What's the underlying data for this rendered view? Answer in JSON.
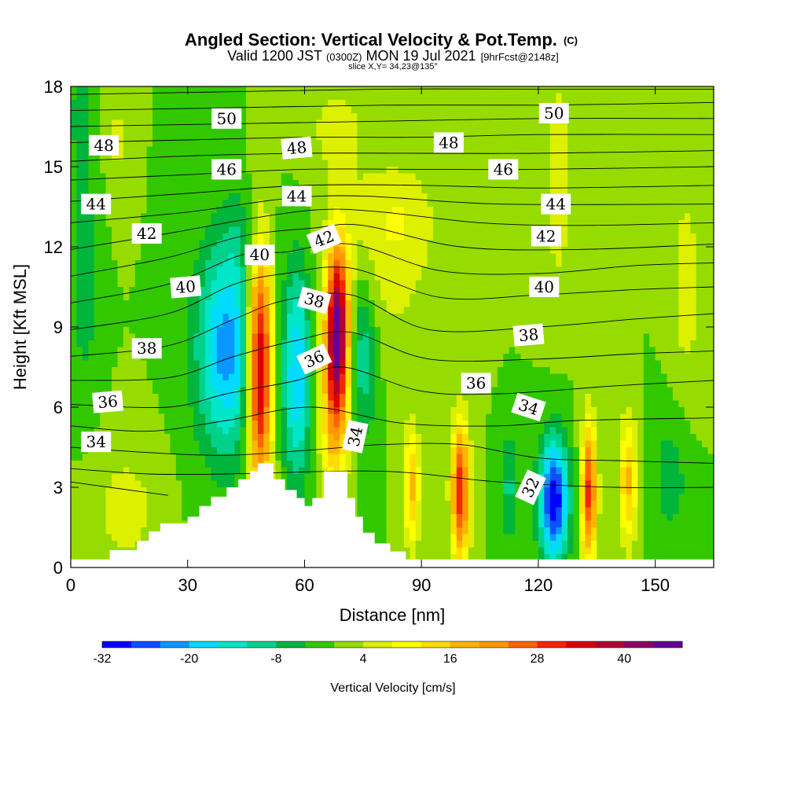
{
  "chart_data": {
    "type": "heatmap",
    "title": "Angled Section: Vertical Velocity & Pot.Temp.",
    "title_mark": "(C)",
    "subtitle_parts": [
      "Valid 1200 JST",
      "(0300Z)",
      "MON 19 Jul 2021",
      "[9hrFcst@2148z]"
    ],
    "subtitle2": "slice X,Y= 34,23@135°",
    "xlabel": "Distance [nm]",
    "ylabel": "Height [Kft MSL]",
    "xlim": [
      0,
      165
    ],
    "ylim": [
      0,
      18
    ],
    "xticks": [
      0,
      30,
      60,
      90,
      120,
      150
    ],
    "yticks": [
      0,
      3,
      6,
      9,
      12,
      15,
      18
    ],
    "colorbar": {
      "label": "Vertical Velocity [cm/s]",
      "ticks": [
        -32,
        -20,
        -8,
        4,
        16,
        28,
        40
      ],
      "min": -32,
      "max": 48,
      "step": 4,
      "colors": [
        "#0000ff",
        "#0a50ff",
        "#0a96ff",
        "#00dcff",
        "#00e6c8",
        "#00d28c",
        "#00b43c",
        "#32c800",
        "#96dc00",
        "#dcf000",
        "#ffff00",
        "#ffdc00",
        "#ffb400",
        "#ff9600",
        "#ff6400",
        "#f02800",
        "#dc0000",
        "#b40032",
        "#8c0064",
        "#640096"
      ]
    },
    "terrain": [
      [
        0,
        0.3
      ],
      [
        10,
        0.3
      ],
      [
        10,
        0.65
      ],
      [
        17,
        0.65
      ],
      [
        17,
        1.0
      ],
      [
        20,
        1.0
      ],
      [
        20,
        1.35
      ],
      [
        23,
        1.35
      ],
      [
        23,
        1.65
      ],
      [
        30,
        1.65
      ],
      [
        30,
        1.9
      ],
      [
        33,
        1.9
      ],
      [
        33,
        2.3
      ],
      [
        36,
        2.3
      ],
      [
        36,
        2.65
      ],
      [
        40,
        2.65
      ],
      [
        40,
        3.0
      ],
      [
        43,
        3.0
      ],
      [
        43,
        3.3
      ],
      [
        46,
        3.3
      ],
      [
        46,
        3.6
      ],
      [
        48,
        3.6
      ],
      [
        48,
        3.9
      ],
      [
        52,
        3.9
      ],
      [
        52,
        3.3
      ],
      [
        55,
        3.3
      ],
      [
        55,
        2.9
      ],
      [
        58,
        2.9
      ],
      [
        58,
        2.6
      ],
      [
        60,
        2.6
      ],
      [
        60,
        2.3
      ],
      [
        62,
        2.3
      ],
      [
        62,
        2.6
      ],
      [
        65,
        2.6
      ],
      [
        65,
        3.6
      ],
      [
        71,
        3.6
      ],
      [
        71,
        2.6
      ],
      [
        73,
        2.6
      ],
      [
        73,
        1.9
      ],
      [
        75,
        1.9
      ],
      [
        75,
        1.3
      ],
      [
        78,
        1.3
      ],
      [
        78,
        0.9
      ],
      [
        82,
        0.9
      ],
      [
        82,
        0.6
      ],
      [
        86,
        0.6
      ],
      [
        86,
        0.3
      ],
      [
        165,
        0.3
      ]
    ],
    "theta_isentropes": [
      {
        "level": 32,
        "pts": [
          [
            0,
            3.2
          ],
          [
            10,
            3.0
          ],
          [
            25,
            2.7
          ]
        ]
      },
      {
        "level": 33,
        "pts": [
          [
            0,
            3.7
          ],
          [
            20,
            3.5
          ],
          [
            40,
            3.5
          ],
          [
            80,
            3.6
          ],
          [
            110,
            3.2
          ],
          [
            140,
            3.0
          ],
          [
            165,
            3.0
          ]
        ]
      },
      {
        "level": 34,
        "pts": [
          [
            0,
            4.5
          ],
          [
            20,
            4.3
          ],
          [
            40,
            4.2
          ],
          [
            62,
            4.4
          ],
          [
            80,
            4.6
          ],
          [
            100,
            4.6
          ],
          [
            120,
            4.1
          ],
          [
            140,
            4.0
          ],
          [
            165,
            3.9
          ]
        ]
      },
      {
        "level": 35,
        "pts": [
          [
            0,
            5.3
          ],
          [
            20,
            5.1
          ],
          [
            40,
            5.5
          ],
          [
            62,
            6.0
          ],
          [
            85,
            5.4
          ],
          [
            110,
            5.3
          ],
          [
            130,
            5.5
          ],
          [
            165,
            5.6
          ]
        ]
      },
      {
        "level": 36,
        "pts": [
          [
            0,
            6.1
          ],
          [
            25,
            6.0
          ],
          [
            40,
            6.5
          ],
          [
            58,
            7.0
          ],
          [
            70,
            7.5
          ],
          [
            90,
            6.6
          ],
          [
            110,
            6.5
          ],
          [
            140,
            6.8
          ],
          [
            165,
            7.0
          ]
        ]
      },
      {
        "level": 37,
        "pts": [
          [
            0,
            7.0
          ],
          [
            25,
            7.1
          ],
          [
            42,
            7.9
          ],
          [
            58,
            8.5
          ],
          [
            72,
            8.8
          ],
          [
            92,
            7.8
          ],
          [
            120,
            7.8
          ],
          [
            145,
            8.0
          ],
          [
            165,
            8.1
          ]
        ]
      },
      {
        "level": 38,
        "pts": [
          [
            0,
            7.9
          ],
          [
            25,
            8.3
          ],
          [
            42,
            9.3
          ],
          [
            55,
            10.0
          ],
          [
            72,
            10.2
          ],
          [
            92,
            8.9
          ],
          [
            120,
            9.0
          ],
          [
            145,
            9.3
          ],
          [
            165,
            9.5
          ]
        ]
      },
      {
        "level": 39,
        "pts": [
          [
            0,
            8.9
          ],
          [
            25,
            9.5
          ],
          [
            42,
            10.6
          ],
          [
            55,
            11.0
          ],
          [
            72,
            11.2
          ],
          [
            95,
            10.1
          ],
          [
            120,
            10.2
          ],
          [
            145,
            10.4
          ],
          [
            165,
            10.5
          ]
        ]
      },
      {
        "level": 40,
        "pts": [
          [
            0,
            9.9
          ],
          [
            25,
            10.6
          ],
          [
            44,
            11.7
          ],
          [
            55,
            11.8
          ],
          [
            72,
            12.1
          ],
          [
            95,
            11.1
          ],
          [
            120,
            11.0
          ],
          [
            145,
            11.3
          ],
          [
            165,
            11.4
          ]
        ]
      },
      {
        "level": 41,
        "pts": [
          [
            0,
            10.9
          ],
          [
            25,
            11.6
          ],
          [
            44,
            12.4
          ],
          [
            62,
            12.7
          ],
          [
            75,
            12.8
          ],
          [
            100,
            12.0
          ],
          [
            130,
            11.9
          ],
          [
            165,
            12.1
          ]
        ]
      },
      {
        "level": 42,
        "pts": [
          [
            0,
            11.9
          ],
          [
            25,
            12.5
          ],
          [
            48,
            13.1
          ],
          [
            65,
            13.4
          ],
          [
            80,
            13.3
          ],
          [
            105,
            12.9
          ],
          [
            130,
            12.8
          ],
          [
            165,
            12.9
          ]
        ]
      },
      {
        "level": 43,
        "pts": [
          [
            0,
            12.9
          ],
          [
            30,
            13.3
          ],
          [
            55,
            13.8
          ],
          [
            75,
            13.9
          ],
          [
            110,
            13.6
          ],
          [
            165,
            13.6
          ]
        ]
      },
      {
        "level": 44,
        "pts": [
          [
            0,
            13.7
          ],
          [
            30,
            14.0
          ],
          [
            60,
            14.3
          ],
          [
            90,
            14.3
          ],
          [
            120,
            14.2
          ],
          [
            165,
            14.3
          ]
        ]
      },
      {
        "level": 45,
        "pts": [
          [
            0,
            14.5
          ],
          [
            30,
            14.7
          ],
          [
            60,
            14.9
          ],
          [
            90,
            14.9
          ],
          [
            120,
            14.9
          ],
          [
            165,
            15.0
          ]
        ]
      },
      {
        "level": 46,
        "pts": [
          [
            0,
            15.2
          ],
          [
            30,
            15.4
          ],
          [
            60,
            15.5
          ],
          [
            90,
            15.5
          ],
          [
            120,
            15.5
          ],
          [
            165,
            15.6
          ]
        ]
      },
      {
        "level": 47,
        "pts": [
          [
            0,
            15.9
          ],
          [
            30,
            16.0
          ],
          [
            60,
            16.1
          ],
          [
            90,
            16.1
          ],
          [
            120,
            16.2
          ],
          [
            165,
            16.2
          ]
        ]
      },
      {
        "level": 48,
        "pts": [
          [
            0,
            16.5
          ],
          [
            40,
            16.6
          ],
          [
            80,
            16.7
          ],
          [
            120,
            16.8
          ],
          [
            165,
            16.8
          ]
        ]
      },
      {
        "level": 49,
        "pts": [
          [
            0,
            17.1
          ],
          [
            40,
            17.2
          ],
          [
            80,
            17.3
          ],
          [
            120,
            17.3
          ],
          [
            165,
            17.4
          ]
        ]
      },
      {
        "level": 50,
        "pts": [
          [
            0,
            17.7
          ],
          [
            40,
            17.8
          ],
          [
            80,
            17.9
          ],
          [
            120,
            17.9
          ],
          [
            165,
            17.9
          ]
        ]
      }
    ],
    "theta_labels": [
      {
        "text": "50",
        "x": 40,
        "y": 16.8,
        "rot": 0
      },
      {
        "text": "48",
        "x": 8.5,
        "y": 15.8,
        "rot": 0
      },
      {
        "text": "48",
        "x": 58,
        "y": 15.7,
        "rot": -5
      },
      {
        "text": "48",
        "x": 97,
        "y": 15.9,
        "rot": 0
      },
      {
        "text": "50",
        "x": 124,
        "y": 17.0,
        "rot": 0
      },
      {
        "text": "46",
        "x": 40,
        "y": 14.9,
        "rot": 0
      },
      {
        "text": "46",
        "x": 111,
        "y": 14.9,
        "rot": 0
      },
      {
        "text": "44",
        "x": 6.5,
        "y": 13.6,
        "rot": 0
      },
      {
        "text": "44",
        "x": 58,
        "y": 13.9,
        "rot": 0
      },
      {
        "text": "44",
        "x": 124.5,
        "y": 13.6,
        "rot": 0
      },
      {
        "text": "42",
        "x": 19.5,
        "y": 12.5,
        "rot": 0
      },
      {
        "text": "42",
        "x": 65,
        "y": 12.3,
        "rot": -22
      },
      {
        "text": "42",
        "x": 122,
        "y": 12.4,
        "rot": 0
      },
      {
        "text": "40",
        "x": 48.5,
        "y": 11.7,
        "rot": 0
      },
      {
        "text": "40",
        "x": 29.5,
        "y": 10.5,
        "rot": -5
      },
      {
        "text": "40",
        "x": 121.5,
        "y": 10.5,
        "rot": 0
      },
      {
        "text": "38",
        "x": 62.5,
        "y": 10.0,
        "rot": 15
      },
      {
        "text": "38",
        "x": 19.5,
        "y": 8.2,
        "rot": 0
      },
      {
        "text": "38",
        "x": 117.5,
        "y": 8.7,
        "rot": -5
      },
      {
        "text": "36",
        "x": 62.5,
        "y": 7.8,
        "rot": -25
      },
      {
        "text": "36",
        "x": 104,
        "y": 6.9,
        "rot": 0
      },
      {
        "text": "36",
        "x": 9.5,
        "y": 6.2,
        "rot": -5
      },
      {
        "text": "34",
        "x": 117.5,
        "y": 6.0,
        "rot": 18
      },
      {
        "text": "34",
        "x": 73,
        "y": 4.9,
        "rot": -78
      },
      {
        "text": "34",
        "x": 6.5,
        "y": 4.7,
        "rot": 0
      },
      {
        "text": "32",
        "x": 118,
        "y": 3.0,
        "rot": -65
      }
    ],
    "w_field": {
      "background": 0,
      "features": [
        {
          "x": 48.5,
          "y": 7.5,
          "sx": 2.2,
          "sy": 3.2,
          "amp": 42
        },
        {
          "x": 68.5,
          "y": 9.0,
          "sx": 2.0,
          "sy": 2.2,
          "amp": 40
        },
        {
          "x": 67.5,
          "y": 5.8,
          "sx": 2.6,
          "sy": 2.5,
          "amp": 16
        },
        {
          "x": 40,
          "y": 8.2,
          "sx": 5.5,
          "sy": 2.8,
          "amp": -22
        },
        {
          "x": 58,
          "y": 7.3,
          "sx": 2.6,
          "sy": 2.8,
          "amp": -20
        },
        {
          "x": 75,
          "y": 8.0,
          "sx": 2.5,
          "sy": 2.2,
          "amp": -12
        },
        {
          "x": 87.5,
          "y": 3.0,
          "sx": 1.5,
          "sy": 1.6,
          "amp": 17
        },
        {
          "x": 100,
          "y": 2.8,
          "sx": 1.6,
          "sy": 1.8,
          "amp": 32
        },
        {
          "x": 112.5,
          "y": 3.0,
          "sx": 1.7,
          "sy": 1.4,
          "amp": -9
        },
        {
          "x": 124,
          "y": 2.5,
          "sx": 2.6,
          "sy": 1.6,
          "amp": -32
        },
        {
          "x": 133,
          "y": 2.8,
          "sx": 1.4,
          "sy": 1.8,
          "amp": 30
        },
        {
          "x": 143,
          "y": 3.2,
          "sx": 1.6,
          "sy": 1.7,
          "amp": 17
        },
        {
          "x": 154,
          "y": 3.4,
          "sx": 3.5,
          "sy": 1.8,
          "amp": -6
        },
        {
          "x": 14,
          "y": 2.2,
          "sx": 6.0,
          "sy": 1.6,
          "amp": 6
        },
        {
          "x": 3.5,
          "y": 11.0,
          "sx": 2.5,
          "sy": 3.0,
          "amp": -7
        },
        {
          "x": 2.5,
          "y": 17.0,
          "sx": 2.0,
          "sy": 1.3,
          "amp": -6
        },
        {
          "x": 158,
          "y": 10.5,
          "sx": 3.0,
          "sy": 3.0,
          "amp": 6
        },
        {
          "x": 125,
          "y": 14.5,
          "sx": 2.5,
          "sy": 3.0,
          "amp": 7
        },
        {
          "x": 80,
          "y": 11.5,
          "sx": 10.0,
          "sy": 2.5,
          "amp": 6
        },
        {
          "x": 68,
          "y": 16.5,
          "sx": 6.0,
          "sy": 1.5,
          "amp": 5
        },
        {
          "x": 85,
          "y": 13.3,
          "sx": 6.0,
          "sy": 1.2,
          "amp": 4
        },
        {
          "x": 45,
          "y": 12.5,
          "sx": 4.0,
          "sy": 1.2,
          "amp": -4
        },
        {
          "x": 12,
          "y": 16.0,
          "sx": 2.0,
          "sy": 1.5,
          "amp": 5
        }
      ]
    }
  }
}
